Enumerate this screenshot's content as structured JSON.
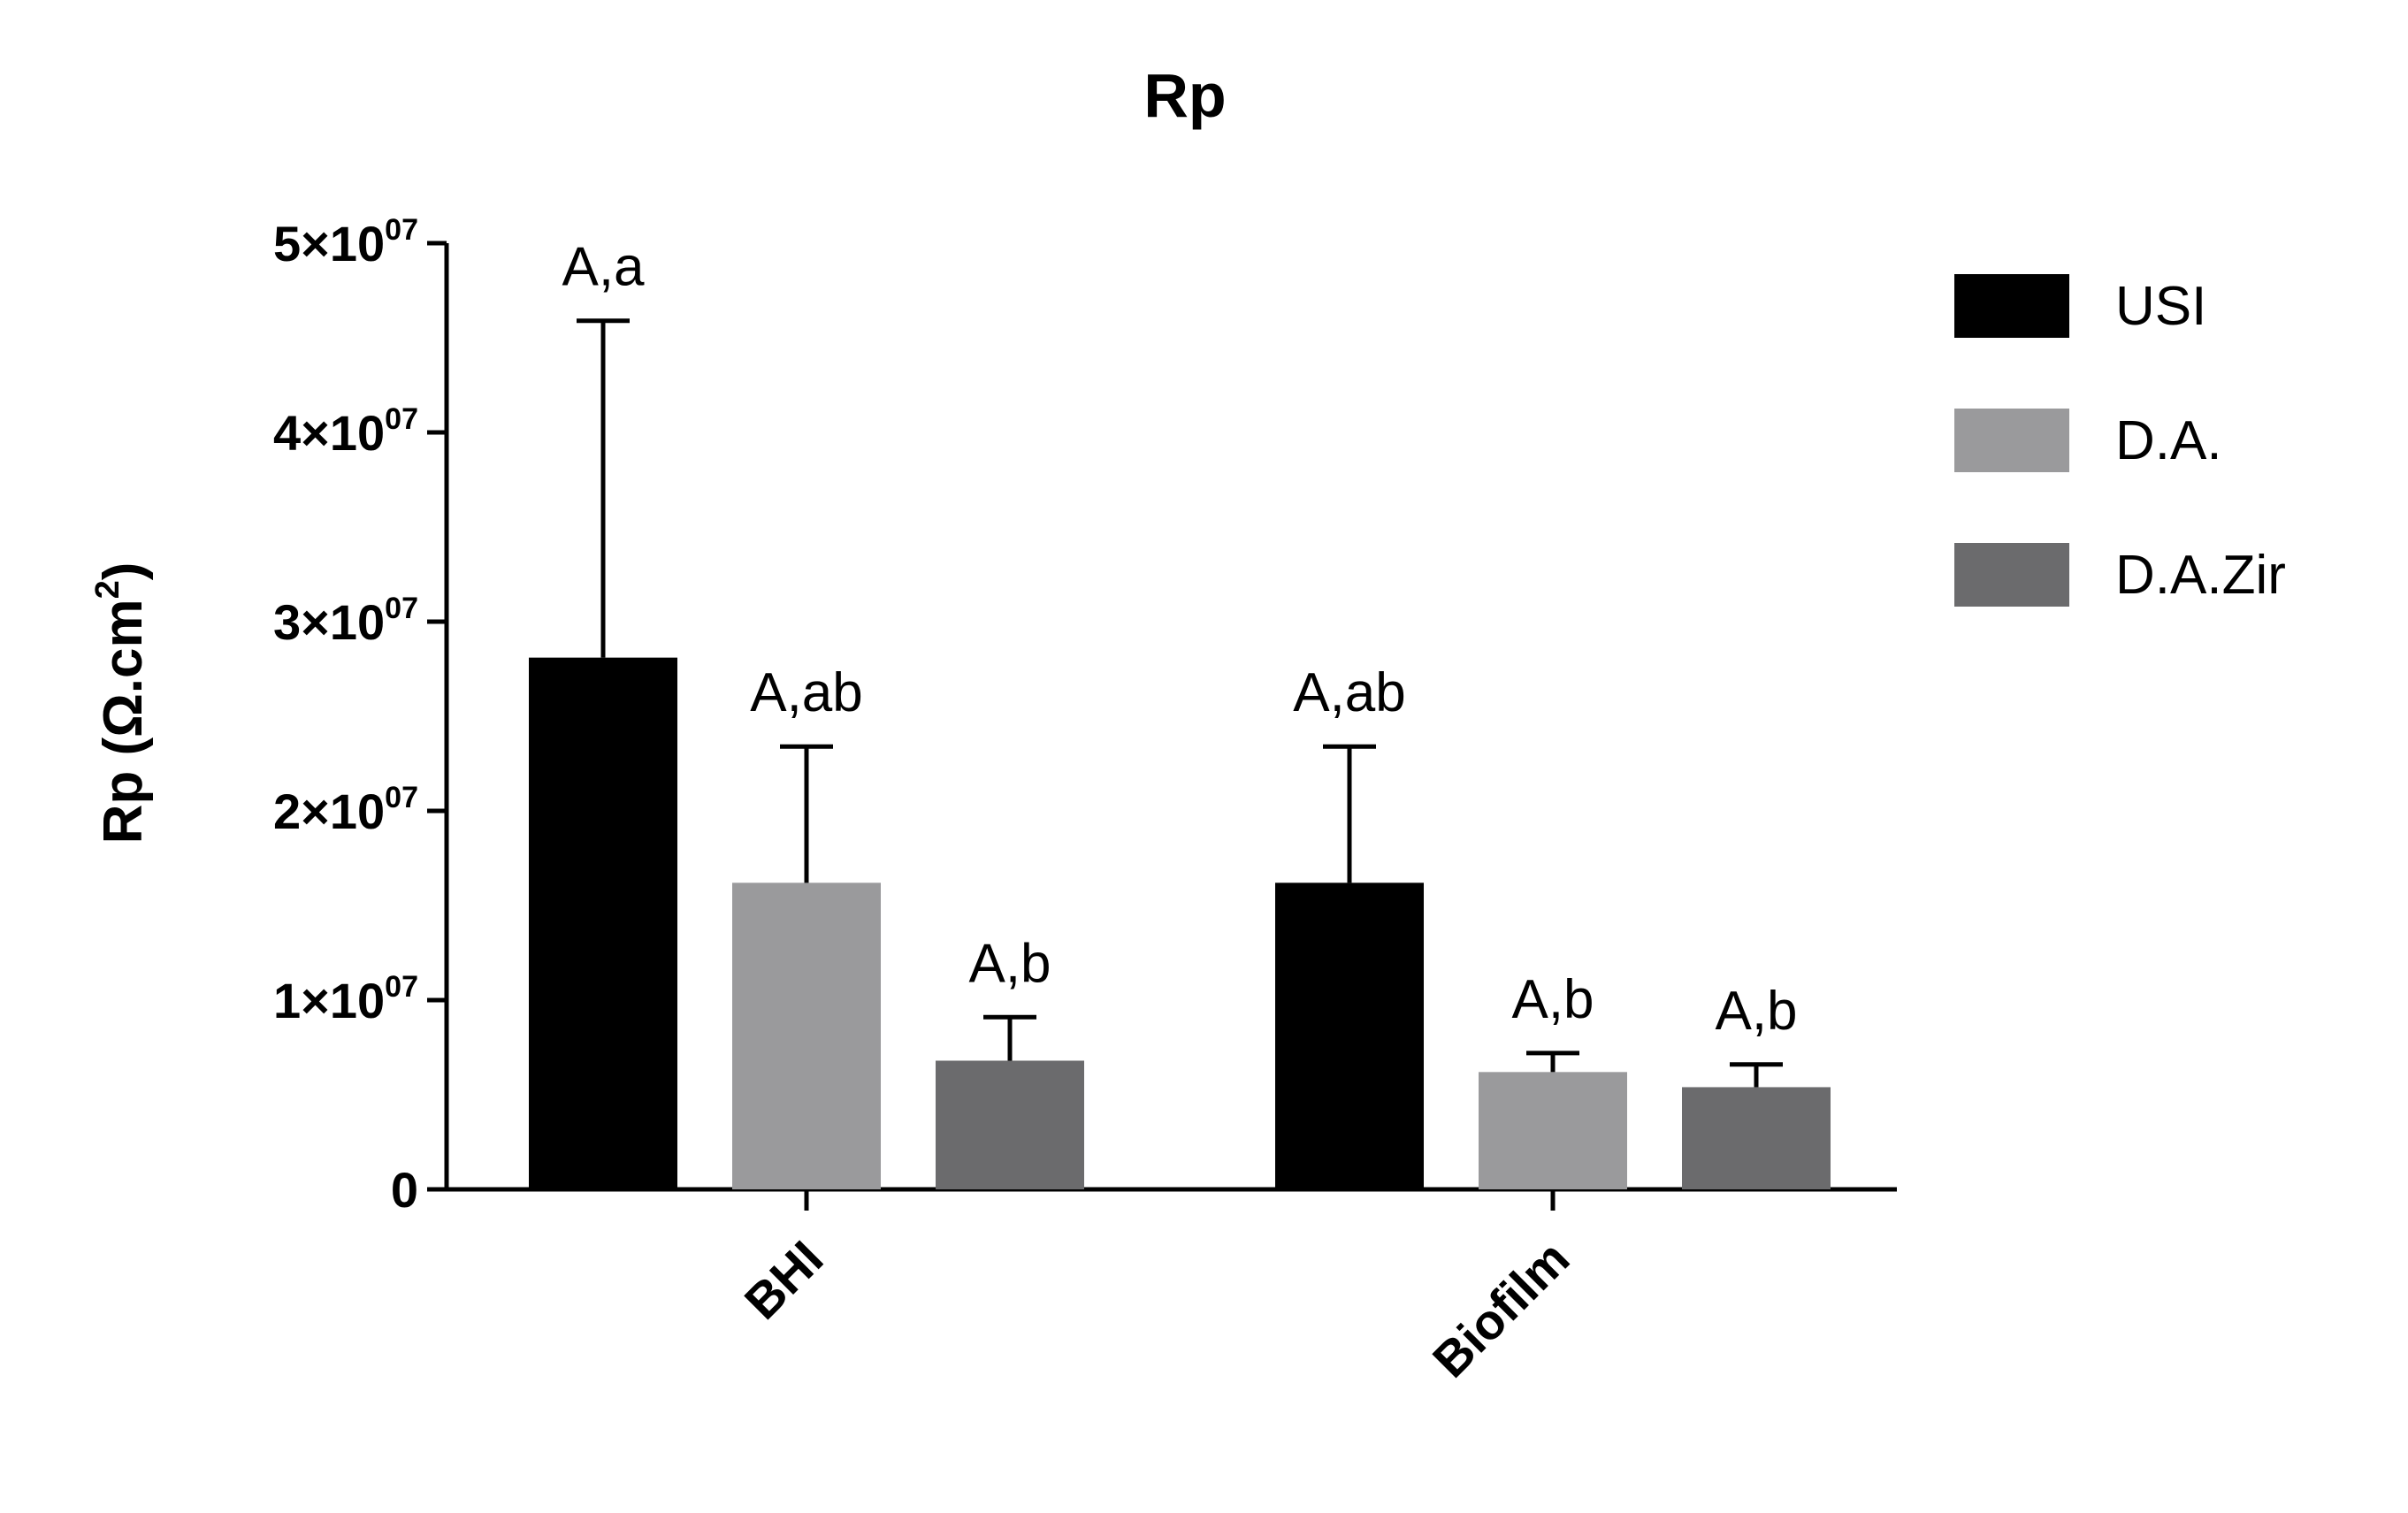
{
  "chart_data": {
    "type": "bar",
    "title": "Rp",
    "ylabel": "Rp (Ω.cm2)",
    "ylabel_parts": {
      "main": "Rp (Ω.cm",
      "sup": "2",
      "end": ")"
    },
    "ylim": [
      0,
      50000000
    ],
    "yticks": [
      {
        "value": 0,
        "base": "0",
        "exp": ""
      },
      {
        "value": 10000000,
        "base": "1×10",
        "exp": "07"
      },
      {
        "value": 20000000,
        "base": "2×10",
        "exp": "07"
      },
      {
        "value": 30000000,
        "base": "3×10",
        "exp": "07"
      },
      {
        "value": 40000000,
        "base": "4×10",
        "exp": "07"
      },
      {
        "value": 50000000,
        "base": "5×10",
        "exp": "07"
      }
    ],
    "categories": [
      "BHI",
      "Biofilm"
    ],
    "series": [
      {
        "name": "USI",
        "color": "#000000",
        "values": [
          28100000,
          16200000
        ],
        "errors": [
          17800000,
          7200000
        ],
        "labels": [
          "A,a",
          "A,ab"
        ]
      },
      {
        "name": "D.A.",
        "color": "#9a9a9c",
        "values": [
          16200000,
          6200000
        ],
        "errors": [
          7200000,
          1000000
        ],
        "labels": [
          "A,ab",
          "A,b"
        ]
      },
      {
        "name": "D.A.Zir",
        "color": "#6b6b6d",
        "values": [
          6800000,
          5400000
        ],
        "errors": [
          2300000,
          1200000
        ],
        "labels": [
          "A,b",
          "A,b"
        ]
      }
    ],
    "grid": false,
    "legend_position": "top-right"
  }
}
